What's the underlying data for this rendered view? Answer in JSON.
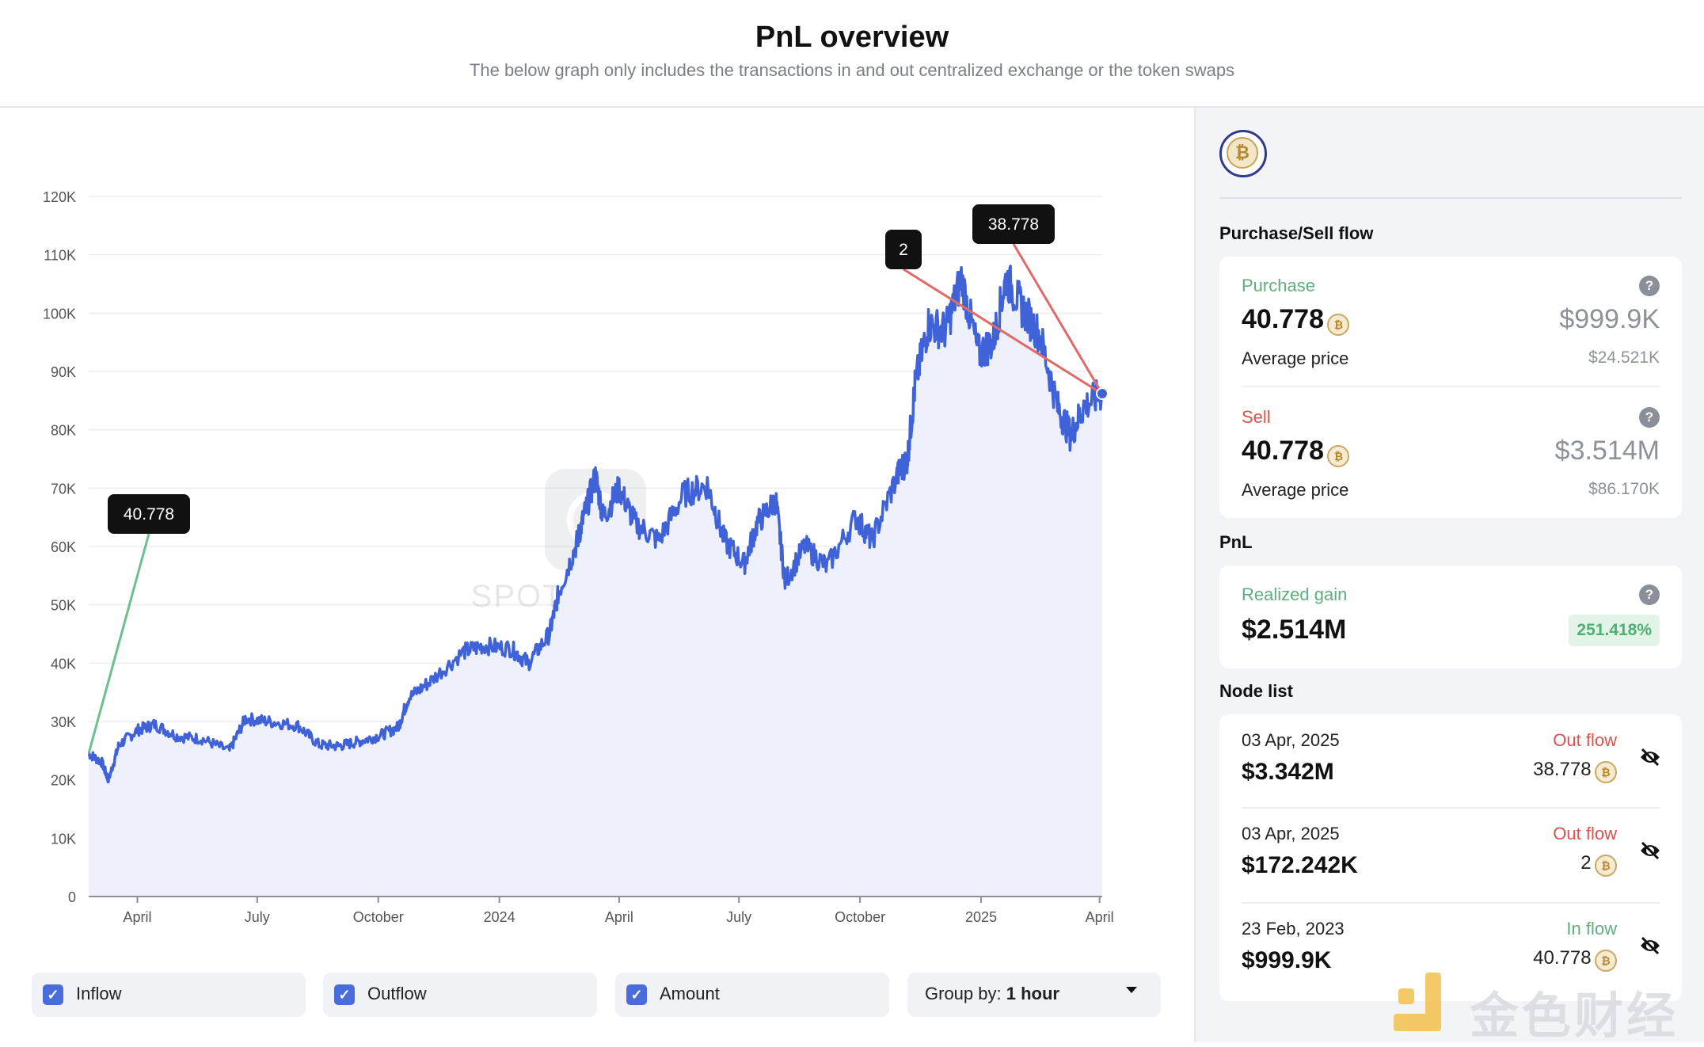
{
  "header": {
    "title": "PnL overview",
    "subtitle": "The below graph only includes the transactions in and out centralized exchange or the token swaps"
  },
  "chart_data": {
    "type": "area",
    "title": "",
    "y_ticks": [
      "0",
      "10K",
      "20K",
      "30K",
      "40K",
      "50K",
      "60K",
      "70K",
      "80K",
      "90K",
      "100K",
      "110K",
      "120K"
    ],
    "ylim": [
      0,
      120000
    ],
    "x_ticks": [
      "April",
      "July",
      "October",
      "2024",
      "April",
      "July",
      "October",
      "2025",
      "April"
    ],
    "xlim": [
      "2023-02-23",
      "2025-04-03"
    ],
    "series": [
      {
        "name": "Amount",
        "color": "#3f62d8",
        "x": [
          "2023-02-23",
          "2023-03-05",
          "2023-03-10",
          "2023-03-18",
          "2023-04-01",
          "2023-04-14",
          "2023-05-01",
          "2023-05-20",
          "2023-06-10",
          "2023-06-22",
          "2023-07-10",
          "2023-08-01",
          "2023-08-17",
          "2023-09-01",
          "2023-09-15",
          "2023-10-01",
          "2023-10-16",
          "2023-10-24",
          "2023-11-10",
          "2023-12-05",
          "2023-12-20",
          "2024-01-10",
          "2024-01-23",
          "2024-02-08",
          "2024-02-15",
          "2024-02-28",
          "2024-03-05",
          "2024-03-14",
          "2024-03-20",
          "2024-04-01",
          "2024-04-13",
          "2024-05-01",
          "2024-05-20",
          "2024-06-07",
          "2024-06-20",
          "2024-07-05",
          "2024-07-15",
          "2024-07-29",
          "2024-08-05",
          "2024-08-20",
          "2024-09-06",
          "2024-09-28",
          "2024-10-10",
          "2024-10-29",
          "2024-11-06",
          "2024-11-12",
          "2024-11-22",
          "2024-12-05",
          "2024-12-17",
          "2024-12-30",
          "2025-01-10",
          "2025-01-20",
          "2025-02-01",
          "2025-02-15",
          "2025-02-28",
          "2025-03-10",
          "2025-03-20",
          "2025-04-03"
        ],
        "y": [
          24500,
          23000,
          20000,
          26000,
          28500,
          29500,
          27500,
          27000,
          25000,
          30500,
          30000,
          29300,
          26000,
          25800,
          26500,
          27500,
          29000,
          34000,
          37000,
          42000,
          43000,
          42500,
          40000,
          45000,
          52000,
          60000,
          65000,
          72000,
          65000,
          70000,
          64000,
          61000,
          69000,
          70500,
          61000,
          57000,
          64000,
          68000,
          54000,
          60000,
          56500,
          65000,
          61000,
          72000,
          75000,
          88000,
          98000,
          97000,
          106000,
          93000,
          95000,
          106000,
          101000,
          96000,
          84000,
          79000,
          84000,
          86200
        ]
      }
    ],
    "annotations": [
      {
        "label": "40.778",
        "type": "inflow",
        "date": "2023-02-23",
        "price": 24521
      },
      {
        "label": "2",
        "type": "outflow",
        "date": "2025-04-03",
        "price": 86170
      },
      {
        "label": "38.778",
        "type": "outflow",
        "date": "2025-04-03",
        "price": 86170
      }
    ],
    "watermark": "SPOTONCHAIN",
    "colors": {
      "line": "#3f62d8",
      "fill": "#eef1fb",
      "inflow": "#6cc08b",
      "outflow": "#e06a6a",
      "grid": "#eceef2"
    }
  },
  "legend": {
    "inflow": "Inflow",
    "outflow": "Outflow",
    "amount": "Amount",
    "group_label": "Group by:",
    "group_value": "1 hour"
  },
  "sidebar": {
    "coin_symbol": "₿",
    "flow_title": "Purchase/Sell flow",
    "purchase": {
      "label": "Purchase",
      "amount": "40.778",
      "usd": "$999.9K",
      "avg_label": "Average price",
      "avg_value": "$24.521K"
    },
    "sell": {
      "label": "Sell",
      "amount": "40.778",
      "usd": "$3.514M",
      "avg_label": "Average price",
      "avg_value": "$86.170K"
    },
    "pnl_title": "PnL",
    "pnl": {
      "label": "Realized gain",
      "value": "$2.514M",
      "percent": "251.418%"
    },
    "node_title": "Node list",
    "nodes": [
      {
        "date": "03 Apr, 2025",
        "value": "$3.342M",
        "flow": "Out flow",
        "amount": "38.778"
      },
      {
        "date": "03 Apr, 2025",
        "value": "$172.242K",
        "flow": "Out flow",
        "amount": "2"
      },
      {
        "date": "23 Feb, 2023",
        "value": "$999.9K",
        "flow": "In flow",
        "amount": "40.778"
      }
    ]
  },
  "watermark_logo": "金色财经"
}
